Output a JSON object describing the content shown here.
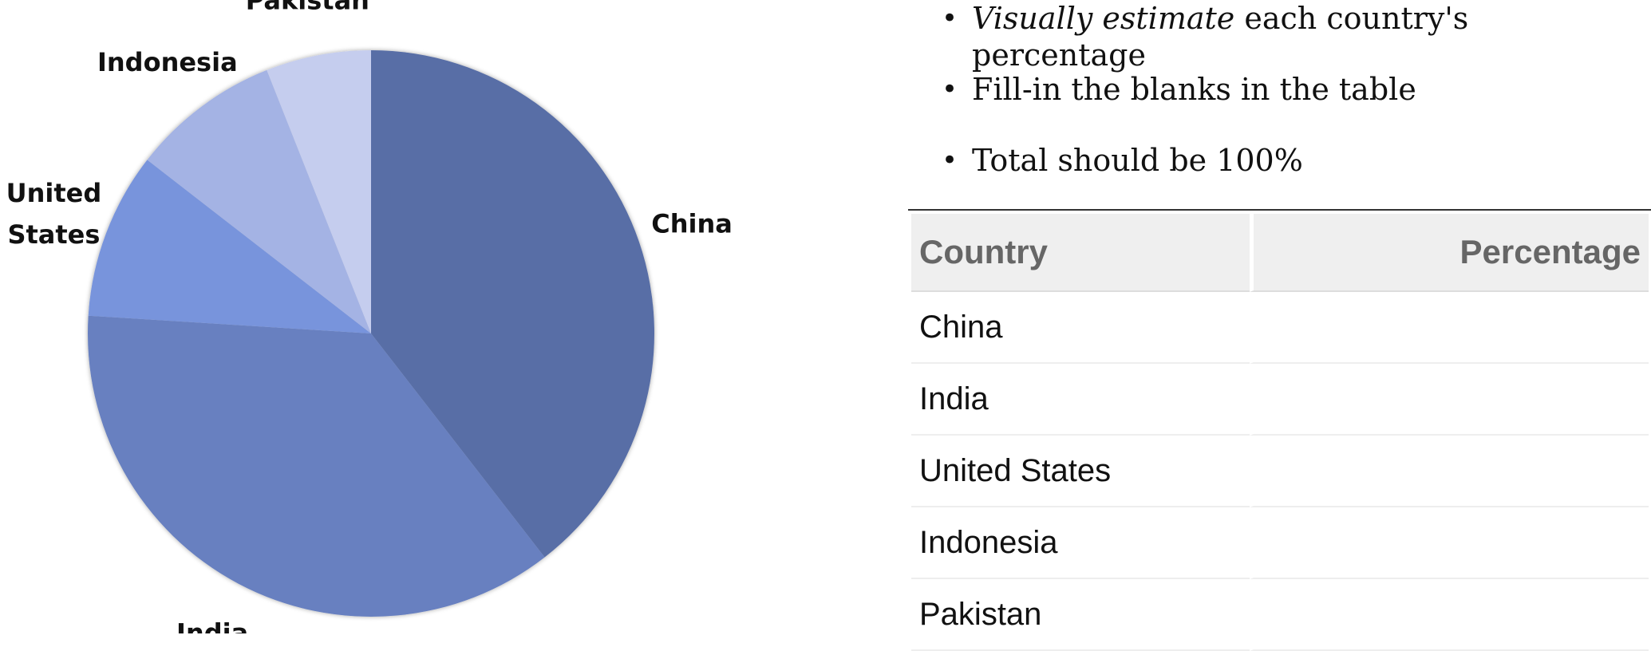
{
  "chart_data": {
    "type": "pie",
    "title": "",
    "slices": [
      {
        "label": "China",
        "value": 39.5,
        "color": "#586ea6"
      },
      {
        "label": "India",
        "value": 36.5,
        "color": "#6880c0"
      },
      {
        "label": "United States",
        "label_lines": [
          "United",
          "States"
        ],
        "value": 9.5,
        "color": "#7894dc"
      },
      {
        "label": "Indonesia",
        "value": 8.5,
        "color": "#a4b3e4"
      },
      {
        "label": "Pakistan",
        "value": 6.0,
        "color": "#c5cdee"
      }
    ]
  },
  "instructions": {
    "item1_em": "Visually estimate",
    "item1_rest": " each country's percentage",
    "item2": "Fill-in the blanks in the table",
    "item3": "Total should be 100%"
  },
  "table": {
    "headers": {
      "country": "Country",
      "percentage": "Percentage"
    },
    "rows": [
      {
        "country": "China",
        "percentage": ""
      },
      {
        "country": "India",
        "percentage": ""
      },
      {
        "country": "United States",
        "percentage": ""
      },
      {
        "country": "Indonesia",
        "percentage": ""
      },
      {
        "country": "Pakistan",
        "percentage": ""
      }
    ]
  }
}
